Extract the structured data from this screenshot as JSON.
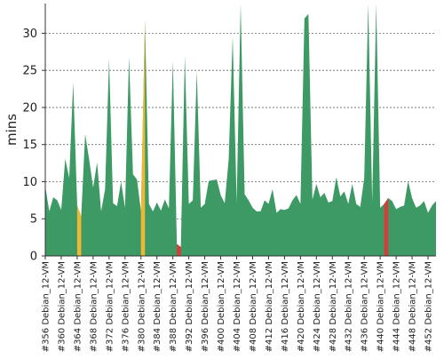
{
  "chart_data": {
    "type": "area",
    "ylabel": "mins",
    "ylim": [
      0,
      34
    ],
    "yticks": [
      0,
      5,
      10,
      15,
      20,
      25,
      30
    ],
    "grid": true,
    "x": [
      356,
      357,
      358,
      359,
      360,
      361,
      362,
      363,
      364,
      365,
      366,
      367,
      368,
      369,
      370,
      371,
      372,
      373,
      374,
      375,
      376,
      377,
      378,
      379,
      380,
      381,
      382,
      383,
      384,
      385,
      386,
      387,
      388,
      389,
      390,
      391,
      392,
      393,
      394,
      395,
      396,
      397,
      398,
      399,
      400,
      401,
      402,
      403,
      404,
      405,
      406,
      407,
      408,
      409,
      410,
      411,
      412,
      413,
      414,
      415,
      416,
      417,
      418,
      419,
      420,
      421,
      422,
      423,
      424,
      425,
      426,
      427,
      428,
      429,
      430,
      431,
      432,
      433,
      434,
      435,
      436,
      437,
      438,
      439,
      440,
      441,
      442,
      443,
      444,
      445,
      446,
      447,
      448,
      449,
      450,
      451,
      452,
      453,
      454
    ],
    "categories": [
      "#356 Debian_12-VM",
      "#360 Debian_12-VM",
      "#364 Debian_12-VM",
      "#368 Debian_12-VM",
      "#372 Debian_12-VM",
      "#376 Debian_12-VM",
      "#380 Debian_12-VM",
      "#384 Debian_12-VM",
      "#388 Debian_12-VM",
      "#392 Debian_12-VM",
      "#396 Debian_12-VM",
      "#400 Debian_12-VM",
      "#404 Debian_12-VM",
      "#408 Debian_12-VM",
      "#412 Debian_12-VM",
      "#416 Debian_12-VM",
      "#420 Debian_12-VM",
      "#424 Debian_12-VM",
      "#428 Debian_12-VM",
      "#432 Debian_12-VM",
      "#436 Debian_12-VM",
      "#440 Debian_12-VM",
      "#444 Debian_12-VM",
      "#448 Debian_12-VM",
      "#452 Debian_12-VM"
    ],
    "category_x": [
      356,
      360,
      364,
      368,
      372,
      376,
      380,
      384,
      388,
      392,
      396,
      400,
      404,
      408,
      412,
      416,
      420,
      424,
      428,
      432,
      436,
      440,
      444,
      448,
      452
    ],
    "values": [
      9.4,
      6.0,
      7.9,
      7.5,
      6.2,
      13.1,
      10.5,
      23.4,
      6.8,
      5.3,
      16.4,
      13.0,
      9.2,
      12.6,
      6.0,
      9.0,
      26.5,
      7.1,
      6.7,
      10.0,
      6.5,
      26.8,
      11.0,
      10.3,
      6.0,
      31.8,
      7.0,
      6.0,
      7.2,
      6.1,
      7.6,
      6.4,
      26.3,
      1.6,
      1.2,
      27.0,
      7.0,
      7.5,
      24.9,
      6.5,
      7.0,
      10.1,
      10.2,
      10.3,
      8.2,
      7.1,
      13.0,
      29.6,
      7.1,
      34.0,
      8.3,
      7.5,
      6.5,
      6.0,
      6.0,
      7.5,
      7.0,
      9.0,
      5.8,
      6.3,
      6.2,
      6.4,
      7.5,
      8.2,
      7.0,
      32.0,
      32.6,
      7.6,
      9.7,
      7.9,
      8.5,
      7.2,
      7.4,
      10.6,
      8.0,
      8.7,
      7.0,
      9.7,
      7.0,
      6.6,
      10.5,
      34.0,
      7.2,
      34.0,
      6.5,
      7.0,
      7.8,
      7.4,
      6.3,
      6.6,
      6.8,
      10.1,
      7.8,
      6.5,
      6.8,
      7.4,
      5.8,
      6.8,
      7.4
    ],
    "colors": {
      "success": "#3d9a64",
      "unstable": "#f0b732",
      "failure": "#d83c38"
    },
    "status_ranges": [
      {
        "from": 364,
        "to": 365,
        "status": "unstable"
      },
      {
        "from": 380,
        "to": 381,
        "status": "unstable"
      },
      {
        "from": 389,
        "to": 390,
        "status": "failure"
      },
      {
        "from": 441,
        "to": 442,
        "status": "failure"
      }
    ]
  }
}
